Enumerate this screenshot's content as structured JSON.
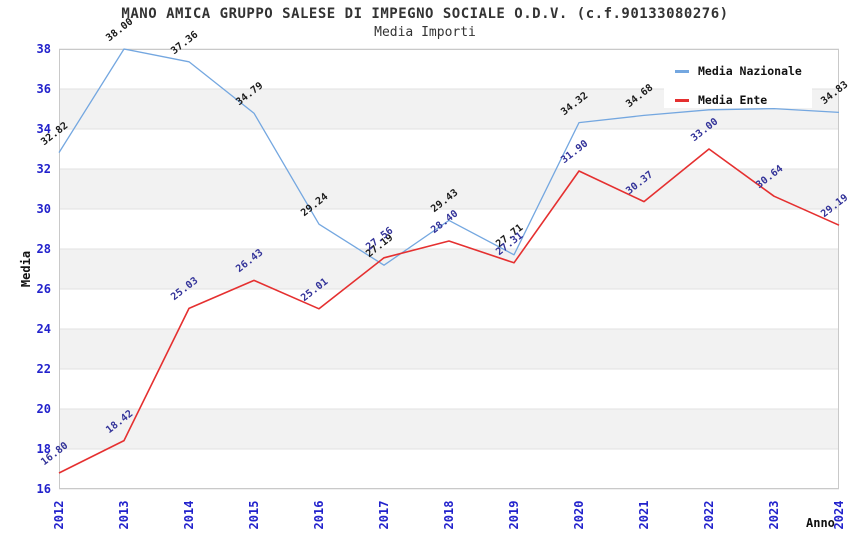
{
  "header": {
    "title": "MANO AMICA GRUPPO SALESE DI IMPEGNO SOCIALE O.D.V. (c.f.90133080276)",
    "subtitle": "Media Importi"
  },
  "legend": {
    "position": "top-right",
    "items": [
      {
        "label": "Media Nazionale",
        "color": "#74a7e0"
      },
      {
        "label": "Media Ente",
        "color": "#e53030"
      }
    ]
  },
  "chart_data": {
    "type": "line",
    "title": "MANO AMICA GRUPPO SALESE DI IMPEGNO SOCIALE O.D.V. (c.f.90133080276)",
    "subtitle": "Media Importi",
    "xlabel": "Anno",
    "ylabel": "Media",
    "x": [
      2012,
      2013,
      2014,
      2015,
      2016,
      2017,
      2018,
      2019,
      2020,
      2021,
      2022,
      2023,
      2024
    ],
    "ylim": [
      16,
      38
    ],
    "ytick_step": 2,
    "y_ticks": [
      16,
      18,
      20,
      22,
      24,
      26,
      28,
      30,
      32,
      34,
      36,
      38
    ],
    "grid": "horizontal gridlines every 2 units with alternating gray stripe bands (18-20, 22-24, 26-28, 30-32, 34-36)",
    "legend_position": "top-right inside plot",
    "series": [
      {
        "name": "Media Nazionale",
        "line_color": "#74a7e0",
        "label_color": "#1a1a1a",
        "values": [
          32.82,
          38.0,
          37.36,
          34.79,
          29.24,
          27.19,
          29.43,
          27.71,
          34.32,
          34.68,
          34.96,
          35.02,
          34.83
        ],
        "labels": [
          "32.82",
          "38.00",
          "37.36",
          "34.79",
          "29.24",
          "27.19",
          "29.43",
          "27.71",
          "34.32",
          "34.68",
          "",
          "",
          "34.83"
        ],
        "note": "2022 and 2023 value labels are covered by the legend box; their values are estimated from the line"
      },
      {
        "name": "Media Ente",
        "line_color": "#e53030",
        "label_color": "#333399",
        "values": [
          16.8,
          18.42,
          25.03,
          26.43,
          25.01,
          27.56,
          28.4,
          27.31,
          31.9,
          30.37,
          33.0,
          30.64,
          29.19
        ],
        "labels": [
          "16.80",
          "18.42",
          "25.03",
          "26.43",
          "25.01",
          "27.56",
          "28.40",
          "27.31",
          "31.90",
          "30.37",
          "33.00",
          "30.64",
          "29.19"
        ]
      }
    ],
    "colors": {
      "stripe_band": "#f2f2f2",
      "gridline": "#e2e2e2",
      "plot_border": "#c9c9c9",
      "tick_label": "#2222cc",
      "background": "#ffffff"
    }
  }
}
